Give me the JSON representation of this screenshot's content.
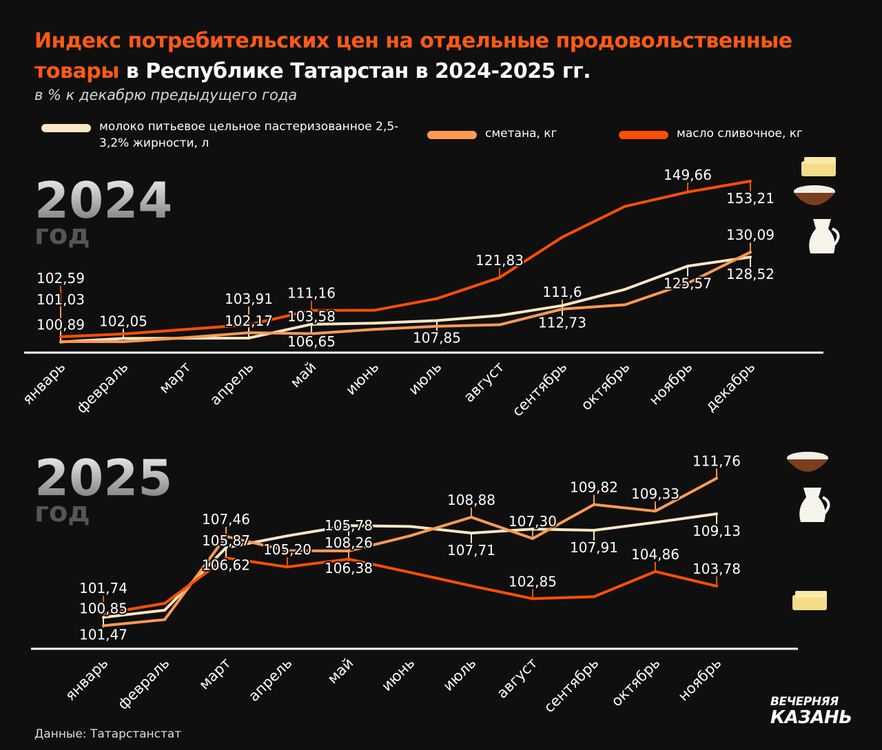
{
  "title": {
    "highlight": "Индекс потребительских цен на отдельные продовольственные товары",
    "rest": " в Республике Татарстан в 2024-2025 гг."
  },
  "subtitle": "в % к декабрю предыдущего года",
  "legend": [
    {
      "label": "молоко питьевое цельное пастеризованное 2,5-3,2% жирности, л",
      "color": "#fde6c4"
    },
    {
      "label": "сметана, кг",
      "color": "#ff9a52"
    },
    {
      "label": "масло сливочное, кг",
      "color": "#ff4f00"
    }
  ],
  "source": "Данные: Татарстанстат",
  "logo": {
    "line1": "ВЕЧЕРНЯЯ",
    "line2": "КАЗАНЬ"
  },
  "chart_data": [
    {
      "type": "line",
      "year_label": "2024",
      "year_suffix": "год",
      "categories": [
        "январь",
        "февраль",
        "март",
        "апрель",
        "май",
        "июнь",
        "июль",
        "август",
        "сентябрь",
        "октябрь",
        "ноябрь",
        "декабрь"
      ],
      "ylim": [
        99,
        155
      ],
      "series": [
        {
          "name": "молоко",
          "color": "#fde6c4",
          "values": [
            100.89,
            102.05,
            102.1,
            102.17,
            106.65,
            107.0,
            107.85,
            109.5,
            112.73,
            118.0,
            125.57,
            128.52
          ],
          "labels": [
            "100,89",
            "102,05",
            null,
            "102,17",
            "106,65",
            null,
            "107,85",
            null,
            "112,73",
            null,
            "125,57",
            "128,52"
          ]
        },
        {
          "name": "сметана",
          "color": "#ff9a52",
          "values": [
            101.03,
            101.0,
            102.3,
            103.91,
            103.58,
            105.0,
            106.0,
            106.5,
            111.6,
            113.0,
            120.0,
            130.09
          ],
          "labels": [
            "101,03",
            null,
            null,
            "103,91",
            "103,58",
            null,
            null,
            null,
            "111,6",
            null,
            null,
            "130,09"
          ]
        },
        {
          "name": "масло",
          "color": "#ff4f00",
          "values": [
            102.59,
            103.5,
            105.0,
            106.5,
            111.16,
            111.2,
            115.0,
            121.83,
            135.0,
            145.0,
            149.66,
            153.21
          ],
          "labels": [
            "102,59",
            null,
            null,
            null,
            "111,16",
            null,
            null,
            "121,83",
            null,
            null,
            "149,66",
            "153,21"
          ]
        }
      ]
    },
    {
      "type": "line",
      "year_label": "2025",
      "year_suffix": "год",
      "categories": [
        "январь",
        "февраль",
        "март",
        "апрель",
        "май",
        "июнь",
        "июль",
        "август",
        "сентябрь",
        "октябрь",
        "ноябрь"
      ],
      "ylim": [
        99.5,
        112.5
      ],
      "series": [
        {
          "name": "молоко",
          "color": "#fde6c4",
          "values": [
            101.47,
            102.0,
            106.62,
            107.5,
            108.26,
            108.2,
            107.71,
            108.0,
            107.91,
            108.5,
            109.13
          ],
          "labels": [
            "101,47",
            null,
            "106,62",
            null,
            "108,26",
            null,
            "107,71",
            null,
            "107,91",
            null,
            "109,13"
          ]
        },
        {
          "name": "сметана",
          "color": "#ff9a52",
          "values": [
            100.85,
            101.3,
            107.46,
            106.4,
            106.38,
            107.5,
            108.88,
            107.3,
            109.82,
            109.33,
            111.76
          ],
          "labels": [
            "100,85",
            null,
            "107,46",
            null,
            "106,38",
            null,
            "108,88",
            "107,30",
            "109,82",
            "109,33",
            "111,76"
          ]
        },
        {
          "name": "масло",
          "color": "#ff4f00",
          "values": [
            101.74,
            102.5,
            105.87,
            105.2,
            105.78,
            104.8,
            103.8,
            102.85,
            103.0,
            104.86,
            103.78
          ],
          "labels": [
            "101,74",
            null,
            "105,87",
            "105,20",
            "105,78",
            null,
            null,
            "102,85",
            null,
            "104,86",
            "103,78"
          ]
        }
      ]
    }
  ]
}
